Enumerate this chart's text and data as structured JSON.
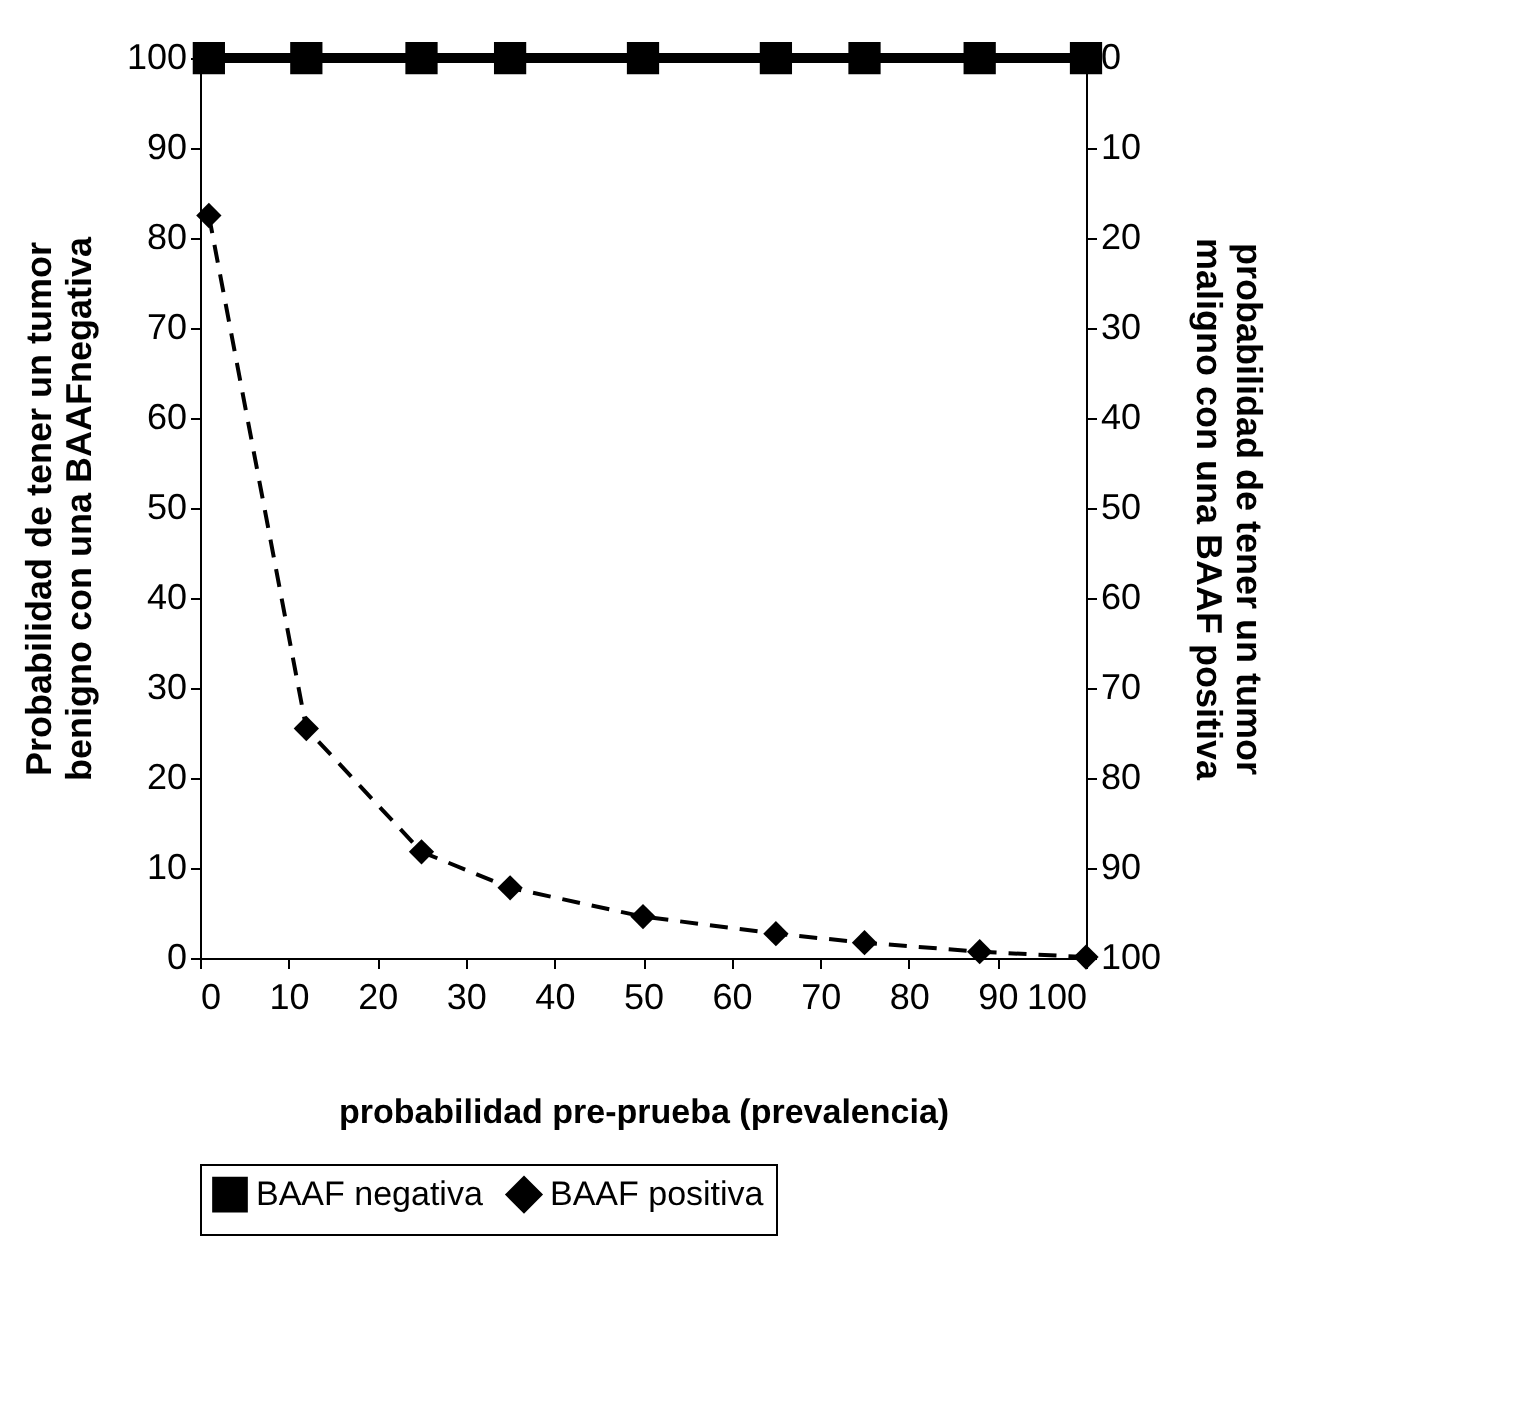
{
  "chart_data": {
    "type": "line",
    "xlabel": "probabilidad pre-prueba (prevalencia)",
    "ylabel": "Probabilidad de tener un tumor benigno con una BAAFnegativa",
    "y2label": "probabilidad de tener un tumor maligno con una BAAF positiva",
    "xlim": [
      0,
      100
    ],
    "xticks": [
      0,
      10,
      20,
      30,
      40,
      50,
      60,
      70,
      80,
      90,
      100
    ],
    "ylim": [
      0,
      100
    ],
    "yticks": [
      0,
      10,
      20,
      30,
      40,
      50,
      60,
      70,
      80,
      90,
      100
    ],
    "y2lim": [
      100,
      0
    ],
    "y2ticks": [
      0,
      10,
      20,
      30,
      40,
      50,
      60,
      70,
      80,
      90,
      100
    ],
    "grid": false,
    "legend": "bottom",
    "series": [
      {
        "name": "BAAF negativa",
        "color": "#000000",
        "marker": "square",
        "line_style": "solid",
        "x": [
          1,
          12,
          25,
          35,
          50,
          65,
          75,
          88,
          100
        ],
        "values": [
          100,
          100,
          100,
          100,
          100,
          100,
          100,
          100,
          100
        ]
      },
      {
        "name": "BAAF positiva",
        "color": "#000000",
        "marker": "diamond",
        "line_style": "dashed",
        "axis": "y2",
        "x": [
          1,
          12,
          25,
          35,
          50,
          65,
          75,
          88,
          100
        ],
        "values": [
          17.5,
          74.5,
          88.2,
          92.2,
          95.4,
          97.3,
          98.3,
          99.3,
          99.9
        ]
      }
    ]
  }
}
